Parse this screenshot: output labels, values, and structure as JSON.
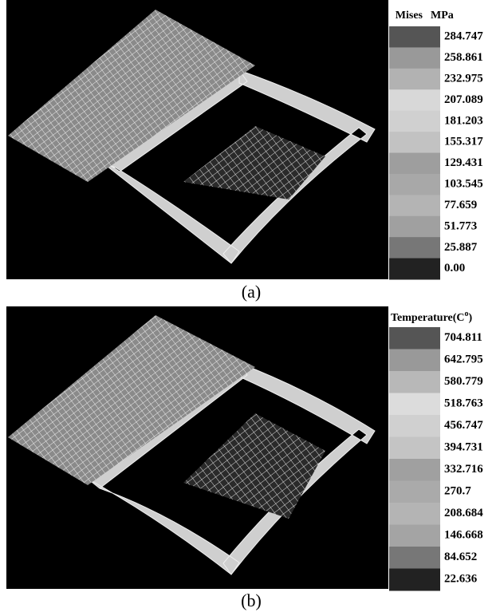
{
  "panels": [
    {
      "legend": {
        "title_left": "Mises",
        "title_right": "MPa",
        "levels": [
          "284.747",
          "258.861",
          "232.975",
          "207.089",
          "181.203",
          "155.317",
          "129.431",
          "103.545",
          "77.659",
          "51.773",
          "25.887",
          "0.00"
        ],
        "colors": [
          "#555555",
          "#999999",
          "#b2b2b2",
          "#d8d8d8",
          "#d0d0d0",
          "#c2c2c2",
          "#9e9e9e",
          "#a8a8a8",
          "#b4b4b4",
          "#a0a0a0",
          "#777777",
          "#222222"
        ]
      },
      "caption": "(a)"
    },
    {
      "legend": {
        "title": "Temperature(C",
        "title_sup": "o",
        "title_end": ")",
        "levels": [
          "704.811",
          "642.795",
          "580.779",
          "518.763",
          "456.747",
          "394.731",
          "332.716",
          "270.7",
          "208.684",
          "146.668",
          "84.652",
          "22.636"
        ],
        "colors": [
          "#555555",
          "#999999",
          "#b8b8b8",
          "#dcdcdc",
          "#d0d0d0",
          "#c4c4c4",
          "#a0a0a0",
          "#aaaaaa",
          "#b4b4b4",
          "#a4a4a4",
          "#777777",
          "#222222"
        ]
      },
      "caption": "(b)"
    }
  ]
}
